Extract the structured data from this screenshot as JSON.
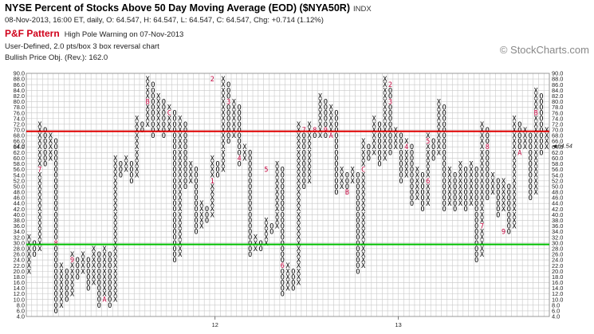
{
  "header": {
    "title": "NYSE Percent of Stocks Above 50 Day Moving Average (EOD) ($NYA50R)",
    "exchange": "INDX",
    "quote": "08-Nov-2013, 16:00 ET, daily, O: 64.547, H: 64.547, L: 64.547, C: 64.547, Chg: +0.714 (1.12%)",
    "pattern_label": "P&F Pattern",
    "pattern_text": "High Pole Warning on 07-Nov-2013",
    "settings": "User-Defined, 2.0 pts/box 3 box reversal chart",
    "price_objective": "Bullish Price Obj. (Rev.): 162.0"
  },
  "watermark": "© StockCharts.com",
  "chart_data": {
    "type": "point-and-figure",
    "box_size": 2,
    "reversal": 3,
    "ylim": [
      4,
      90
    ],
    "y_ticks": [
      "4.0",
      "6.0",
      "8.0",
      "10.0",
      "12.0",
      "14.0",
      "16.0",
      "18.0",
      "20.0",
      "22.0",
      "24.0",
      "26.0",
      "28.0",
      "30.0",
      "32.0",
      "34.0",
      "36.0",
      "38.0",
      "40.0",
      "42.0",
      "44.0",
      "46.0",
      "48.0",
      "50.0",
      "52.0",
      "54.0",
      "56.0",
      "58.0",
      "60.0",
      "62.0",
      "64.0",
      "66.0",
      "68.0",
      "70.0",
      "72.0",
      "74.0",
      "76.0",
      "78.0",
      "80.0",
      "82.0",
      "84.0",
      "86.0",
      "88.0",
      "90.0"
    ],
    "x_labels": [
      {
        "label": "12",
        "column": 35
      },
      {
        "label": "13",
        "column": 69
      }
    ],
    "current_price_label": "64.0",
    "current_price_right": "64.54",
    "columns": [
      {
        "t": "X",
        "lo": 20,
        "hi": 32
      },
      {
        "t": "O",
        "lo": 26,
        "hi": 30
      },
      {
        "t": "X",
        "lo": 28,
        "hi": 72
      },
      {
        "t": "O",
        "lo": 58,
        "hi": 70
      },
      {
        "t": "X",
        "lo": 60,
        "hi": 68
      },
      {
        "t": "O",
        "lo": 6,
        "hi": 66
      },
      {
        "t": "X",
        "lo": 8,
        "hi": 22
      },
      {
        "t": "O",
        "lo": 10,
        "hi": 20
      },
      {
        "t": "X",
        "lo": 12,
        "hi": 26
      },
      {
        "t": "O",
        "lo": 18,
        "hi": 24
      },
      {
        "t": "X",
        "lo": 20,
        "hi": 26
      },
      {
        "t": "O",
        "lo": 14,
        "hi": 24
      },
      {
        "t": "X",
        "lo": 16,
        "hi": 28
      },
      {
        "t": "O",
        "lo": 8,
        "hi": 26
      },
      {
        "t": "X",
        "lo": 10,
        "hi": 28
      },
      {
        "t": "O",
        "lo": 8,
        "hi": 26
      },
      {
        "t": "X",
        "lo": 10,
        "hi": 60
      },
      {
        "t": "O",
        "lo": 54,
        "hi": 58
      },
      {
        "t": "X",
        "lo": 56,
        "hi": 60
      },
      {
        "t": "O",
        "lo": 52,
        "hi": 58
      },
      {
        "t": "X",
        "lo": 54,
        "hi": 74
      },
      {
        "t": "O",
        "lo": 70,
        "hi": 72
      },
      {
        "t": "X",
        "lo": 72,
        "hi": 88
      },
      {
        "t": "O",
        "lo": 68,
        "hi": 86
      },
      {
        "t": "X",
        "lo": 70,
        "hi": 82
      },
      {
        "t": "O",
        "lo": 68,
        "hi": 80
      },
      {
        "t": "X",
        "lo": 70,
        "hi": 78
      },
      {
        "t": "O",
        "lo": 24,
        "hi": 76
      },
      {
        "t": "X",
        "lo": 26,
        "hi": 74
      },
      {
        "t": "O",
        "lo": 50,
        "hi": 72
      },
      {
        "t": "X",
        "lo": 52,
        "hi": 58
      },
      {
        "t": "O",
        "lo": 34,
        "hi": 56
      },
      {
        "t": "X",
        "lo": 36,
        "hi": 44
      },
      {
        "t": "O",
        "lo": 38,
        "hi": 42
      },
      {
        "t": "X",
        "lo": 40,
        "hi": 60
      },
      {
        "t": "O",
        "lo": 54,
        "hi": 58
      },
      {
        "t": "X",
        "lo": 56,
        "hi": 88
      },
      {
        "t": "O",
        "lo": 66,
        "hi": 86
      },
      {
        "t": "X",
        "lo": 68,
        "hi": 80
      },
      {
        "t": "O",
        "lo": 58,
        "hi": 78
      },
      {
        "t": "X",
        "lo": 60,
        "hi": 64
      },
      {
        "t": "O",
        "lo": 26,
        "hi": 62
      },
      {
        "t": "X",
        "lo": 28,
        "hi": 32
      },
      {
        "t": "O",
        "lo": 28,
        "hi": 30
      },
      {
        "t": "X",
        "lo": 30,
        "hi": 38
      },
      {
        "t": "O",
        "lo": 34,
        "hi": 36
      },
      {
        "t": "X",
        "lo": 36,
        "hi": 58
      },
      {
        "t": "O",
        "lo": 12,
        "hi": 56
      },
      {
        "t": "X",
        "lo": 14,
        "hi": 22
      },
      {
        "t": "O",
        "lo": 14,
        "hi": 20
      },
      {
        "t": "X",
        "lo": 16,
        "hi": 72
      },
      {
        "t": "O",
        "lo": 50,
        "hi": 70
      },
      {
        "t": "X",
        "lo": 52,
        "hi": 72
      },
      {
        "t": "O",
        "lo": 68,
        "hi": 70
      },
      {
        "t": "X",
        "lo": 68,
        "hi": 82
      },
      {
        "t": "O",
        "lo": 68,
        "hi": 80
      },
      {
        "t": "X",
        "lo": 70,
        "hi": 78
      },
      {
        "t": "O",
        "lo": 48,
        "hi": 76
      },
      {
        "t": "X",
        "lo": 50,
        "hi": 56
      },
      {
        "t": "O",
        "lo": 50,
        "hi": 54
      },
      {
        "t": "X",
        "lo": 52,
        "hi": 56
      },
      {
        "t": "O",
        "lo": 20,
        "hi": 54
      },
      {
        "t": "X",
        "lo": 22,
        "hi": 66
      },
      {
        "t": "O",
        "lo": 60,
        "hi": 64
      },
      {
        "t": "X",
        "lo": 62,
        "hi": 74
      },
      {
        "t": "O",
        "lo": 58,
        "hi": 72
      },
      {
        "t": "X",
        "lo": 60,
        "hi": 88
      },
      {
        "t": "O",
        "lo": 62,
        "hi": 86
      },
      {
        "t": "X",
        "lo": 64,
        "hi": 70
      },
      {
        "t": "O",
        "lo": 52,
        "hi": 68
      },
      {
        "t": "X",
        "lo": 54,
        "hi": 66
      },
      {
        "t": "O",
        "lo": 44,
        "hi": 64
      },
      {
        "t": "X",
        "lo": 46,
        "hi": 56
      },
      {
        "t": "O",
        "lo": 42,
        "hi": 54
      },
      {
        "t": "X",
        "lo": 44,
        "hi": 68
      },
      {
        "t": "O",
        "lo": 60,
        "hi": 66
      },
      {
        "t": "X",
        "lo": 62,
        "hi": 80
      },
      {
        "t": "O",
        "lo": 42,
        "hi": 78
      },
      {
        "t": "X",
        "lo": 44,
        "hi": 56
      },
      {
        "t": "O",
        "lo": 42,
        "hi": 54
      },
      {
        "t": "X",
        "lo": 44,
        "hi": 58
      },
      {
        "t": "O",
        "lo": 42,
        "hi": 56
      },
      {
        "t": "X",
        "lo": 44,
        "hi": 58
      },
      {
        "t": "O",
        "lo": 24,
        "hi": 56
      },
      {
        "t": "X",
        "lo": 26,
        "hi": 72
      },
      {
        "t": "O",
        "lo": 46,
        "hi": 70
      },
      {
        "t": "X",
        "lo": 48,
        "hi": 54
      },
      {
        "t": "O",
        "lo": 40,
        "hi": 52
      },
      {
        "t": "X",
        "lo": 42,
        "hi": 52
      },
      {
        "t": "O",
        "lo": 34,
        "hi": 50
      },
      {
        "t": "X",
        "lo": 36,
        "hi": 74
      },
      {
        "t": "O",
        "lo": 62,
        "hi": 72
      },
      {
        "t": "X",
        "lo": 64,
        "hi": 70
      },
      {
        "t": "O",
        "lo": 46,
        "hi": 68
      },
      {
        "t": "X",
        "lo": 48,
        "hi": 84
      },
      {
        "t": "O",
        "lo": 62,
        "hi": 82
      },
      {
        "t": "X",
        "lo": 64,
        "hi": 70
      }
    ],
    "month_markers": [
      {
        "label": "7",
        "column": 2,
        "value": 56
      },
      {
        "label": "8",
        "column": 5,
        "value": 30
      },
      {
        "label": "9",
        "column": 8,
        "value": 24
      },
      {
        "label": "A",
        "column": 14,
        "value": 10
      },
      {
        "label": "B",
        "column": 22,
        "value": 80
      },
      {
        "label": "C",
        "column": 26,
        "value": 76
      },
      {
        "label": "1",
        "column": 34,
        "value": 52
      },
      {
        "label": "2",
        "column": 34,
        "value": 88
      },
      {
        "label": "3",
        "column": 37,
        "value": 80
      },
      {
        "label": "4",
        "column": 39,
        "value": 60
      },
      {
        "label": "5",
        "column": 44,
        "value": 56
      },
      {
        "label": "6",
        "column": 47,
        "value": 22
      },
      {
        "label": "7",
        "column": 51,
        "value": 70
      },
      {
        "label": "8",
        "column": 53,
        "value": 70
      },
      {
        "label": "9",
        "column": 55,
        "value": 70
      },
      {
        "label": "A",
        "column": 56,
        "value": 68
      },
      {
        "label": "B",
        "column": 59,
        "value": 48
      },
      {
        "label": "C",
        "column": 62,
        "value": 56
      },
      {
        "label": "2",
        "column": 67,
        "value": 86
      },
      {
        "label": "3",
        "column": 67,
        "value": 80
      },
      {
        "label": "4",
        "column": 70,
        "value": 64
      },
      {
        "label": "5",
        "column": 74,
        "value": 66
      },
      {
        "label": "6",
        "column": 74,
        "value": 52
      },
      {
        "label": "7",
        "column": 84,
        "value": 36
      },
      {
        "label": "8",
        "column": 85,
        "value": 64
      },
      {
        "label": "9",
        "column": 88,
        "value": 34
      },
      {
        "label": "A",
        "column": 91,
        "value": 62
      },
      {
        "label": "B",
        "column": 94,
        "value": 76
      }
    ],
    "lines": [
      {
        "name": "",
        "value": 69.5,
        "color": "#e00000"
      },
      {
        "name": "",
        "value": 29.5,
        "color": "#00c000"
      }
    ],
    "colors": {
      "x": "#000000",
      "o": "#000000",
      "marker": "#c0003a",
      "grid": "#c8c8c8",
      "current": "#c0003a"
    }
  }
}
